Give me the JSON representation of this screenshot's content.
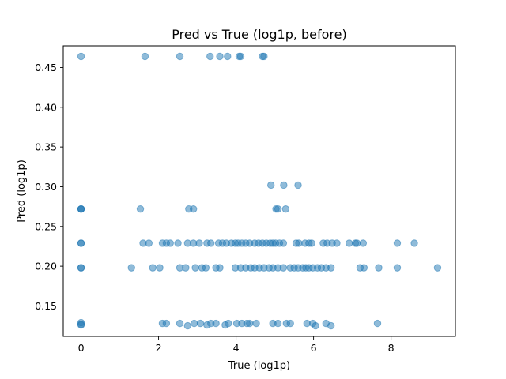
{
  "chart_data": {
    "type": "scatter",
    "title": "Pred vs True (log1p, before)",
    "xlabel": "True (log1p)",
    "ylabel": "Pred (log1p)",
    "xlim": [
      -0.46,
      9.66
    ],
    "ylim": [
      0.1117,
      0.4773
    ],
    "xticks": [
      0,
      2,
      4,
      6,
      8
    ],
    "yticks": [
      0.15,
      0.2,
      0.25,
      0.3,
      0.35,
      0.4,
      0.45
    ],
    "grid": false,
    "legend": "none",
    "color": "#1f77b4",
    "alpha": 0.5,
    "series": [
      {
        "x": [
          0,
          1.65,
          2.55,
          3.33,
          3.58,
          3.78,
          4.08,
          4.12,
          4.68,
          4.72,
          0,
          0,
          0,
          1.53,
          2.78,
          2.9,
          5.03,
          5.08,
          5.28,
          4.9,
          5.23,
          5.6,
          0,
          0,
          1.6,
          1.75,
          2.1,
          2.2,
          2.3,
          2.5,
          2.75,
          2.9,
          3.05,
          3.25,
          3.35,
          3.55,
          3.65,
          3.75,
          3.88,
          3.98,
          4.05,
          4.15,
          4.25,
          4.35,
          4.48,
          4.58,
          4.68,
          4.78,
          4.88,
          4.95,
          5.02,
          5.12,
          5.22,
          5.55,
          5.62,
          5.78,
          5.88,
          5.95,
          6.25,
          6.35,
          6.48,
          6.6,
          6.92,
          7.08,
          7.28,
          7.12,
          8.16,
          8.6,
          0,
          0,
          1.3,
          1.85,
          2.03,
          2.55,
          2.7,
          2.95,
          3.12,
          3.22,
          3.48,
          3.58,
          3.98,
          4.12,
          4.25,
          4.38,
          4.48,
          4.6,
          4.72,
          4.85,
          4.95,
          5.08,
          5.22,
          5.4,
          5.5,
          5.6,
          5.72,
          5.8,
          5.88,
          5.98,
          6.1,
          6.2,
          6.32,
          6.45,
          7.2,
          7.3,
          7.68,
          8.16,
          9.2,
          0,
          0,
          0,
          2.1,
          2.2,
          2.55,
          2.75,
          2.92,
          3.08,
          3.25,
          3.35,
          3.48,
          3.72,
          3.8,
          4.02,
          4.15,
          4.28,
          4.35,
          4.52,
          4.95,
          5.08,
          5.3,
          5.4,
          5.83,
          5.98,
          6.05,
          6.32,
          6.45,
          7.65
        ],
        "y": [
          0.464,
          0.464,
          0.464,
          0.464,
          0.464,
          0.464,
          0.464,
          0.464,
          0.464,
          0.464,
          0.272,
          0.272,
          0.272,
          0.272,
          0.272,
          0.272,
          0.272,
          0.272,
          0.272,
          0.302,
          0.302,
          0.302,
          0.229,
          0.229,
          0.229,
          0.229,
          0.229,
          0.229,
          0.229,
          0.229,
          0.229,
          0.229,
          0.229,
          0.229,
          0.229,
          0.229,
          0.229,
          0.229,
          0.229,
          0.229,
          0.229,
          0.229,
          0.229,
          0.229,
          0.229,
          0.229,
          0.229,
          0.229,
          0.229,
          0.229,
          0.229,
          0.229,
          0.229,
          0.229,
          0.229,
          0.229,
          0.229,
          0.229,
          0.229,
          0.229,
          0.229,
          0.229,
          0.229,
          0.229,
          0.229,
          0.229,
          0.229,
          0.229,
          0.198,
          0.198,
          0.198,
          0.198,
          0.198,
          0.198,
          0.198,
          0.198,
          0.198,
          0.198,
          0.198,
          0.198,
          0.198,
          0.198,
          0.198,
          0.198,
          0.198,
          0.198,
          0.198,
          0.198,
          0.198,
          0.198,
          0.198,
          0.198,
          0.198,
          0.198,
          0.198,
          0.198,
          0.198,
          0.198,
          0.198,
          0.198,
          0.198,
          0.198,
          0.198,
          0.198,
          0.198,
          0.198,
          0.198,
          0.129,
          0.126,
          0.127,
          0.128,
          0.128,
          0.128,
          0.125,
          0.128,
          0.128,
          0.126,
          0.128,
          0.128,
          0.126,
          0.128,
          0.128,
          0.128,
          0.128,
          0.128,
          0.128,
          0.128,
          0.128,
          0.128,
          0.128,
          0.128,
          0.128,
          0.125,
          0.128,
          0.125,
          0.128
        ]
      }
    ]
  }
}
